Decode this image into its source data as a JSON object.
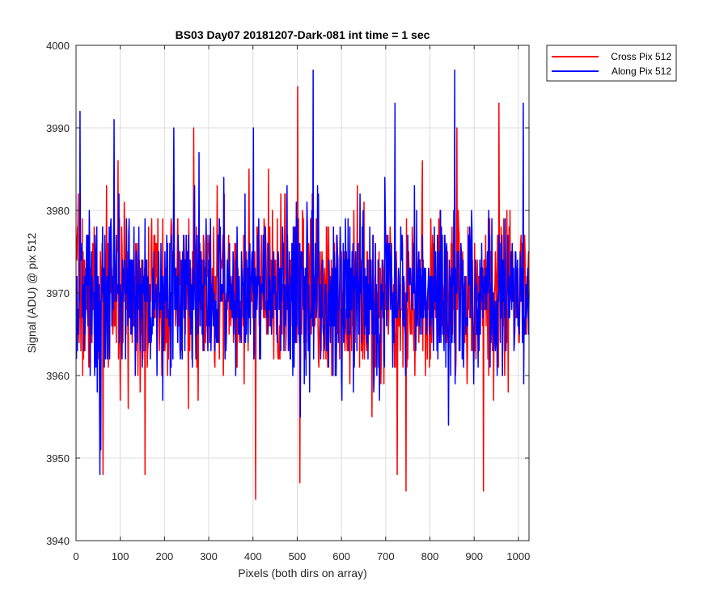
{
  "chart_data": {
    "type": "line",
    "title": "BS03 Day07 20181207-Dark-081 int time = 1 sec",
    "xlabel": "Pixels (both dirs on array)",
    "ylabel": "Signal (ADU) @ pix 512",
    "xlim": [
      0,
      1024
    ],
    "ylim": [
      3940,
      4000
    ],
    "xticks": [
      0,
      100,
      200,
      300,
      400,
      500,
      600,
      700,
      800,
      900,
      1000
    ],
    "yticks": [
      3940,
      3950,
      3960,
      3970,
      3980,
      3990,
      4000
    ],
    "grid": true,
    "legend_location": "outside top-right",
    "n_points": 1024,
    "series": [
      {
        "name": "Cross Pix 512",
        "color": "#ff0000",
        "mean": 3970,
        "spread": 5,
        "seed": 7,
        "extremes": [
          [
            60,
            3948
          ],
          [
            155,
            3948
          ],
          [
            265,
            3990
          ],
          [
            405,
            3945
          ],
          [
            500,
            3995
          ],
          [
            505,
            3947
          ],
          [
            725,
            3948
          ],
          [
            745,
            3946
          ],
          [
            860,
            3990
          ],
          [
            920,
            3946
          ],
          [
            955,
            3993
          ]
        ]
      },
      {
        "name": "Along Pix 512",
        "color": "#0000ff",
        "mean": 3970,
        "spread": 5,
        "seed": 13,
        "extremes": [
          [
            8,
            3992
          ],
          [
            53,
            3948
          ],
          [
            85,
            3991
          ],
          [
            220,
            3990
          ],
          [
            400,
            3990
          ],
          [
            535,
            3997
          ],
          [
            720,
            3993
          ],
          [
            855,
            3997
          ],
          [
            1010,
            3993
          ],
          [
            55,
            3951
          ]
        ]
      }
    ]
  }
}
